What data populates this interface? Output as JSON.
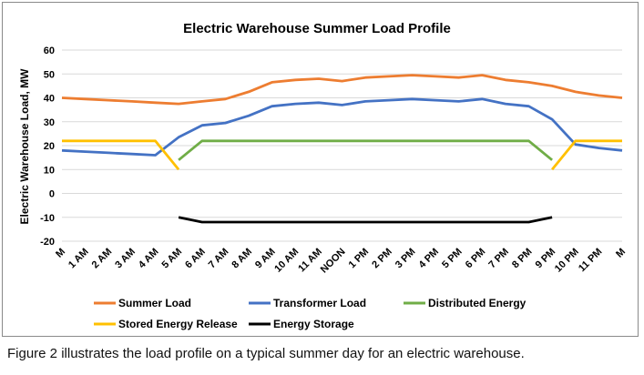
{
  "chart_data": {
    "type": "line",
    "title": "Electric Warehouse Summer Load Profile",
    "xlabel": "",
    "ylabel": "Electric Warehouse Load, MW",
    "ylim": [
      -20,
      60
    ],
    "yticks": [
      -20,
      -10,
      0,
      10,
      20,
      30,
      40,
      50,
      60
    ],
    "grid": true,
    "legend_position": "bottom",
    "categories": [
      "M",
      "1 AM",
      "2 AM",
      "3 AM",
      "4 AM",
      "5 AM",
      "6 AM",
      "7 AM",
      "8 AM",
      "9 AM",
      "10 AM",
      "11 AM",
      "NOON",
      "1 PM",
      "2 PM",
      "3 PM",
      "4 PM",
      "5 PM",
      "6 PM",
      "7 PM",
      "8 PM",
      "9 PM",
      "10 PM",
      "11 PM",
      "M"
    ],
    "series": [
      {
        "name": "Summer Load",
        "color": "#ED7D31",
        "values": [
          40,
          39.5,
          39,
          38.5,
          38,
          37.5,
          38.5,
          39.5,
          42.5,
          46.5,
          47.5,
          48,
          47,
          48.5,
          49,
          49.5,
          49,
          48.5,
          49.5,
          47.5,
          46.5,
          45,
          42.5,
          41,
          40
        ]
      },
      {
        "name": "Transformer Load",
        "color": "#4472C4",
        "values": [
          18,
          17.5,
          17,
          16.5,
          16,
          23.5,
          28.5,
          29.5,
          32.5,
          36.5,
          37.5,
          38,
          37,
          38.5,
          39,
          39.5,
          39,
          38.5,
          39.5,
          37.5,
          36.5,
          31,
          20.5,
          19,
          18
        ]
      },
      {
        "name": "Distributed Energy",
        "color": "#70AD47",
        "values": [
          null,
          null,
          null,
          null,
          null,
          14,
          22,
          22,
          22,
          22,
          22,
          22,
          22,
          22,
          22,
          22,
          22,
          22,
          22,
          22,
          22,
          14,
          null,
          null,
          null
        ]
      },
      {
        "name": "Stored Energy Release",
        "color": "#FFC000",
        "values": [
          22,
          22,
          22,
          22,
          22,
          10,
          null,
          null,
          null,
          null,
          null,
          null,
          null,
          null,
          null,
          null,
          null,
          null,
          null,
          null,
          null,
          10,
          22,
          22,
          22
        ]
      },
      {
        "name": "Energy Storage",
        "color": "#000000",
        "values": [
          null,
          null,
          null,
          null,
          null,
          -10,
          -12,
          -12,
          -12,
          -12,
          -12,
          -12,
          -12,
          -12,
          -12,
          -12,
          -12,
          -12,
          -12,
          -12,
          -12,
          -10,
          null,
          null,
          null
        ]
      }
    ]
  },
  "caption": "Figure 2 illustrates the load profile on a typical summer day for an electric warehouse."
}
